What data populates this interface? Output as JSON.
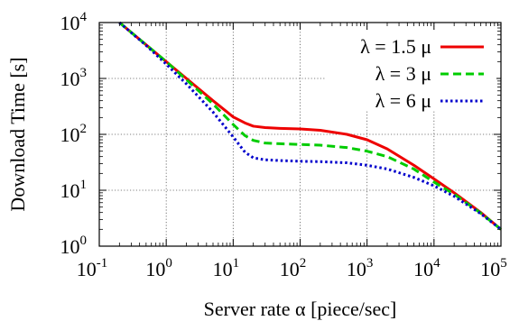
{
  "chart_data": {
    "type": "line",
    "title": "",
    "xlabel": "Server rate α [piece/sec]",
    "ylabel": "Download Time [s]",
    "x_scale": "log",
    "y_scale": "log",
    "xlim": [
      0.1,
      100000
    ],
    "ylim": [
      1,
      10000
    ],
    "grid": true,
    "legend_position": "top-right",
    "x_ticks": [
      {
        "base": "10",
        "exp": "-1",
        "value": 0.1
      },
      {
        "base": "10",
        "exp": "0",
        "value": 1
      },
      {
        "base": "10",
        "exp": "1",
        "value": 10
      },
      {
        "base": "10",
        "exp": "2",
        "value": 100
      },
      {
        "base": "10",
        "exp": "3",
        "value": 1000
      },
      {
        "base": "10",
        "exp": "4",
        "value": 10000
      },
      {
        "base": "10",
        "exp": "5",
        "value": 100000
      }
    ],
    "y_ticks": [
      {
        "base": "10",
        "exp": "0",
        "value": 1
      },
      {
        "base": "10",
        "exp": "1",
        "value": 10
      },
      {
        "base": "10",
        "exp": "2",
        "value": 100
      },
      {
        "base": "10",
        "exp": "3",
        "value": 1000
      },
      {
        "base": "10",
        "exp": "4",
        "value": 10000
      }
    ],
    "series": [
      {
        "name": "λ = 1.5 μ",
        "color": "#ee0000",
        "dash": "solid",
        "x": [
          0.2,
          0.5,
          1,
          2,
          5,
          10,
          15,
          20,
          30,
          50,
          100,
          200,
          500,
          1000,
          2000,
          5000,
          10000,
          20000,
          50000,
          100000
        ],
        "y": [
          10000,
          4000,
          2000,
          1000,
          400,
          205,
          160,
          140,
          132,
          128,
          125,
          118,
          100,
          80,
          55,
          28,
          16,
          9,
          4,
          2
        ]
      },
      {
        "name": "λ = 3 μ",
        "color": "#00cc00",
        "dash": "dashed",
        "x": [
          0.2,
          0.5,
          1,
          2,
          5,
          10,
          15,
          20,
          30,
          50,
          100,
          200,
          500,
          1000,
          2000,
          5000,
          10000,
          20000,
          50000,
          100000
        ],
        "y": [
          10000,
          4000,
          2000,
          950,
          350,
          150,
          95,
          78,
          70,
          68,
          66,
          64,
          58,
          50,
          40,
          24,
          14,
          8.5,
          3.9,
          2
        ]
      },
      {
        "name": "λ = 6 μ",
        "color": "#0000cc",
        "dash": "dotted",
        "x": [
          0.2,
          0.5,
          1,
          2,
          5,
          10,
          15,
          20,
          30,
          50,
          100,
          200,
          500,
          1000,
          2000,
          5000,
          10000,
          20000,
          50000,
          100000
        ],
        "y": [
          10000,
          3900,
          1800,
          800,
          250,
          90,
          48,
          38,
          35,
          34,
          33,
          32.5,
          31,
          28,
          24,
          17,
          12,
          7.8,
          3.8,
          2
        ]
      }
    ]
  }
}
